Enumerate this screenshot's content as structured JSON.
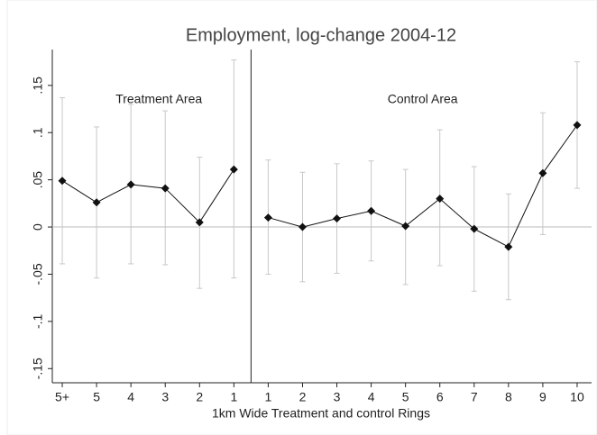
{
  "chart_data": {
    "type": "line",
    "title": "Employment, log-change 2004-12",
    "x_label": "1km Wide Treatment and control Rings",
    "color": "#111111",
    "ci_color": "#c8c8c8",
    "groups": [
      {
        "label": "Treatment Area",
        "categories": [
          "5+",
          "5",
          "4",
          "3",
          "2",
          "1"
        ],
        "values": [
          0.049,
          0.026,
          0.045,
          0.041,
          0.005,
          0.061
        ],
        "ci_low": [
          -0.039,
          -0.054,
          -0.039,
          -0.04,
          -0.065,
          -0.054
        ],
        "ci_high": [
          0.137,
          0.106,
          0.13,
          0.123,
          0.074,
          0.177
        ]
      },
      {
        "label": "Control Area",
        "categories": [
          "1",
          "2",
          "3",
          "4",
          "5",
          "6",
          "7",
          "8",
          "9",
          "10"
        ],
        "values": [
          0.01,
          0.0,
          0.009,
          0.017,
          0.001,
          0.03,
          -0.002,
          -0.021,
          0.057,
          0.108
        ],
        "ci_low": [
          -0.05,
          -0.058,
          -0.049,
          -0.036,
          -0.061,
          -0.041,
          -0.068,
          -0.077,
          -0.008,
          0.041
        ],
        "ci_high": [
          0.071,
          0.058,
          0.067,
          0.07,
          0.061,
          0.103,
          0.064,
          0.035,
          0.121,
          0.175
        ]
      }
    ],
    "ylim": [
      -0.165,
      0.188
    ],
    "yticks": [
      {
        "value": 0.15,
        "label": ".15"
      },
      {
        "value": 0.1,
        "label": ".1"
      },
      {
        "value": 0.05,
        "label": ".05"
      },
      0,
      {
        "value": -0.05,
        "label": "-.05"
      },
      {
        "value": -0.1,
        "label": "-.1"
      },
      {
        "value": -0.15,
        "label": "-.15"
      }
    ]
  }
}
